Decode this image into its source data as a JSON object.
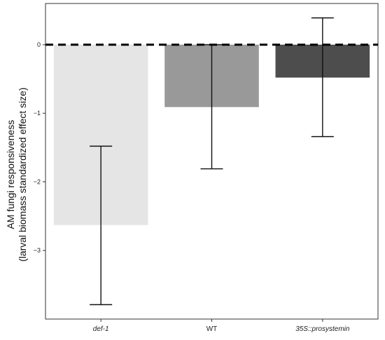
{
  "chart_data": {
    "type": "bar",
    "categories": [
      "def-1",
      "WT",
      "35S::prosystemin"
    ],
    "italic_categories": [
      true,
      false,
      true
    ],
    "values": [
      -2.63,
      -0.91,
      -0.48
    ],
    "error_low": [
      -3.79,
      -1.81,
      -1.34
    ],
    "error_high": [
      -1.48,
      0.0,
      0.39
    ],
    "bar_colors": [
      "#e5e5e5",
      "#999999",
      "#4d4d4d"
    ],
    "ylabel_line1": "AM fungi responsiveness",
    "ylabel_line2": "(larval biomass standardized effect size)",
    "ylim": [
      -4.0,
      0.6
    ],
    "yticks": [
      0,
      -1,
      -2,
      -3
    ],
    "ytick_labels": [
      "0",
      "−1",
      "−2",
      "−3"
    ],
    "reference_line": 0,
    "grid": false,
    "legend": "none"
  }
}
